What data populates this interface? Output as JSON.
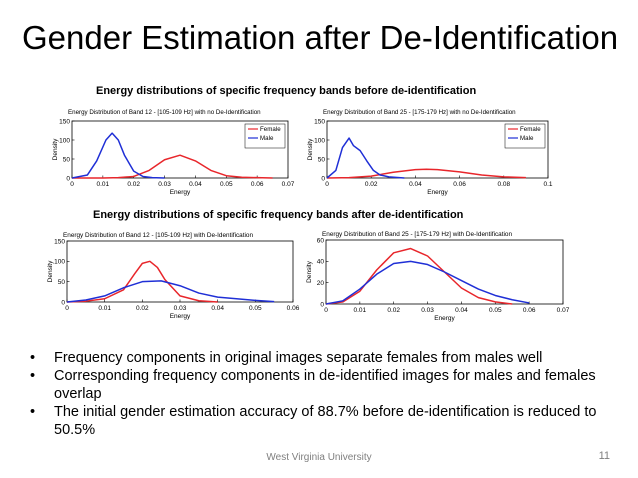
{
  "slide": {
    "title": "Gender Estimation after De-Identification",
    "heading_before": "Energy distributions of specific frequency bands before de-identification",
    "heading_after": "Energy distributions of specific frequency bands after de-identification",
    "bullets": [
      "Frequency components in original images separate females from males well",
      "Corresponding frequency components in de-identified images for males and females overlap",
      "The initial gender estimation accuracy of 88.7% before de-identification is reduced to 50.5%"
    ],
    "bullet_glyph": "•",
    "footer": "West Virginia University",
    "page_number": "11"
  },
  "colors": {
    "female": "#e8262b",
    "male": "#1f2fd6",
    "axis": "#000000"
  },
  "chart_data": [
    {
      "type": "line",
      "title": "Energy Distribution of Band 12 - [105-109 Hz] with no De-Identification",
      "xlabel": "Energy",
      "ylabel": "Density",
      "xlim": [
        0,
        0.07
      ],
      "ylim": [
        0,
        150
      ],
      "xticks": [
        "0",
        "0.01",
        "0.02",
        "0.03",
        "0.04",
        "0.05",
        "0.06",
        "0.07"
      ],
      "yticks": [
        "0",
        "50",
        "100",
        "150"
      ],
      "legend": "top-right",
      "series": [
        {
          "name": "Female",
          "color_key": "female",
          "x": [
            0,
            0.01,
            0.015,
            0.02,
            0.025,
            0.03,
            0.035,
            0.04,
            0.045,
            0.05,
            0.055,
            0.06,
            0.065
          ],
          "y": [
            0,
            0,
            1,
            4,
            20,
            48,
            60,
            45,
            20,
            6,
            2,
            1,
            0
          ]
        },
        {
          "name": "Male",
          "color_key": "male",
          "x": [
            0,
            0.005,
            0.008,
            0.011,
            0.013,
            0.015,
            0.017,
            0.02,
            0.023,
            0.026,
            0.03
          ],
          "y": [
            0,
            8,
            45,
            100,
            118,
            100,
            60,
            18,
            4,
            1,
            0
          ]
        }
      ]
    },
    {
      "type": "line",
      "title": "Energy Distribution of Band 25 - [175-179 Hz] with no De-Identification",
      "xlabel": "Energy",
      "ylabel": "Density",
      "xlim": [
        0,
        0.1
      ],
      "ylim": [
        0,
        150
      ],
      "xticks": [
        "0",
        "0.02",
        "0.04",
        "0.06",
        "0.08",
        "0.1"
      ],
      "yticks": [
        "0",
        "50",
        "100",
        "150"
      ],
      "legend": "top-right",
      "series": [
        {
          "name": "Female",
          "color_key": "female",
          "x": [
            0,
            0.01,
            0.02,
            0.03,
            0.04,
            0.045,
            0.05,
            0.06,
            0.07,
            0.08,
            0.09
          ],
          "y": [
            0,
            1,
            5,
            15,
            22,
            23,
            22,
            16,
            8,
            3,
            1
          ]
        },
        {
          "name": "Male",
          "color_key": "male",
          "x": [
            0,
            0.004,
            0.007,
            0.01,
            0.012,
            0.015,
            0.018,
            0.021,
            0.024,
            0.028,
            0.035
          ],
          "y": [
            0,
            20,
            80,
            105,
            85,
            72,
            45,
            20,
            8,
            3,
            0
          ]
        }
      ]
    },
    {
      "type": "line",
      "title": "Energy Distribution of Band 12 - [105-109 Hz] with De-Identification",
      "xlabel": "Energy",
      "ylabel": "Density",
      "xlim": [
        0,
        0.06
      ],
      "ylim": [
        0,
        150
      ],
      "xticks": [
        "0",
        "0.01",
        "0.02",
        "0.03",
        "0.04",
        "0.05",
        "0.06"
      ],
      "yticks": [
        "0",
        "50",
        "100",
        "150"
      ],
      "legend": "",
      "series": [
        {
          "name": "",
          "color_key": "female",
          "x": [
            0,
            0.005,
            0.01,
            0.015,
            0.018,
            0.02,
            0.022,
            0.024,
            0.026,
            0.03,
            0.035,
            0.04
          ],
          "y": [
            0,
            2,
            8,
            30,
            70,
            95,
            100,
            85,
            55,
            15,
            3,
            0
          ]
        },
        {
          "name": "",
          "color_key": "male",
          "x": [
            0,
            0.005,
            0.01,
            0.015,
            0.02,
            0.025,
            0.03,
            0.035,
            0.04,
            0.045,
            0.05,
            0.055
          ],
          "y": [
            0,
            5,
            15,
            35,
            50,
            52,
            40,
            22,
            12,
            8,
            4,
            1
          ]
        }
      ]
    },
    {
      "type": "line",
      "title": "Energy Distribution of Band 25 - [175-179 Hz] with De-Identification",
      "xlabel": "Energy",
      "ylabel": "Density",
      "xlim": [
        0,
        0.07
      ],
      "ylim": [
        0,
        60
      ],
      "xticks": [
        "0",
        "0.01",
        "0.02",
        "0.03",
        "0.04",
        "0.05",
        "0.06",
        "0.07"
      ],
      "yticks": [
        "0",
        "20",
        "40",
        "60"
      ],
      "legend": "",
      "series": [
        {
          "name": "",
          "color_key": "female",
          "x": [
            0,
            0.005,
            0.01,
            0.015,
            0.02,
            0.025,
            0.03,
            0.035,
            0.04,
            0.045,
            0.05,
            0.055
          ],
          "y": [
            0,
            2,
            12,
            32,
            48,
            52,
            45,
            30,
            15,
            6,
            2,
            0
          ]
        },
        {
          "name": "",
          "color_key": "male",
          "x": [
            0,
            0.005,
            0.01,
            0.015,
            0.02,
            0.025,
            0.03,
            0.035,
            0.04,
            0.045,
            0.05,
            0.055,
            0.06
          ],
          "y": [
            0,
            3,
            14,
            28,
            38,
            40,
            37,
            30,
            22,
            14,
            8,
            4,
            1
          ]
        }
      ]
    }
  ]
}
